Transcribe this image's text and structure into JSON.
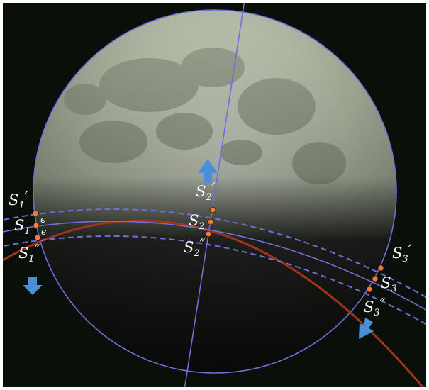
{
  "points": {
    "S1_prime": {
      "base": "S",
      "sub": "1",
      "mark": "′"
    },
    "S1": {
      "base": "S",
      "sub": "1",
      "mark": ""
    },
    "S1_dprime": {
      "base": "S",
      "sub": "1",
      "mark": "″"
    },
    "S2_prime": {
      "base": "S",
      "sub": "2",
      "mark": "′"
    },
    "S2": {
      "base": "S",
      "sub": "2",
      "mark": ""
    },
    "S2_dprime": {
      "base": "S",
      "sub": "2",
      "mark": "″"
    },
    "S3_prime": {
      "base": "S",
      "sub": "3",
      "mark": "′"
    },
    "S3": {
      "base": "S",
      "sub": "3",
      "mark": ""
    },
    "S3_dprime": {
      "base": "S",
      "sub": "3",
      "mark": "″"
    }
  },
  "epsilon": "ϵ",
  "colors": {
    "sky": "#0b0f0a",
    "moon_light": "#c9d3c0",
    "moon_dark": "#6f7a6a",
    "line": "#6f6fd8",
    "shadow_arc": "#a0341a",
    "point": "#ff7a2a",
    "arrow": "#4a8fd8"
  }
}
